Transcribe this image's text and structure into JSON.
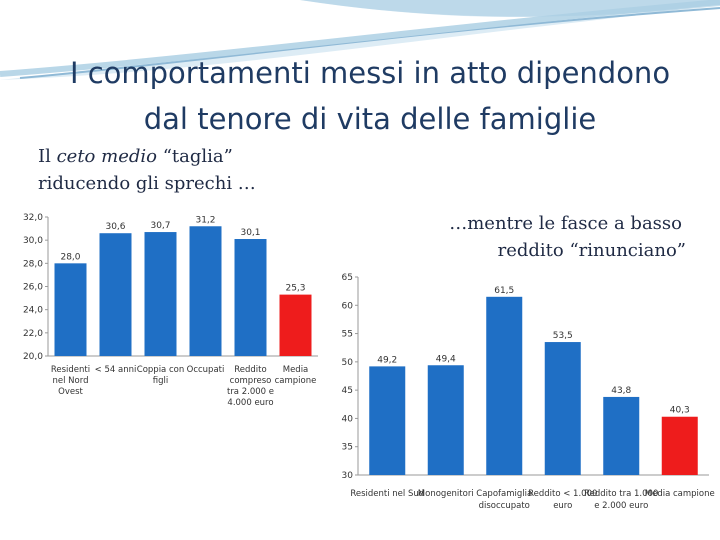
{
  "slide": {
    "title_line1": "I comportamenti messi in atto dipendono",
    "title_line2": "dal tenore di vita delle famiglie",
    "left_caption": {
      "line1_pre": "Il ",
      "line1_italic": "ceto medio",
      "line1_post": " “taglia”",
      "line2": "riducendo gli sprechi …"
    },
    "right_caption": {
      "line1": "…mentre le fasce a basso",
      "line2": "reddito “rinunciano”"
    }
  },
  "colors": {
    "bar_blue": "#1f6fc5",
    "bar_red": "#ee1c1c",
    "title": "#1f3b63",
    "banner": "#b9d7e8"
  },
  "chart_data": [
    {
      "type": "bar",
      "categories": [
        [
          "Residenti",
          "nel Nord",
          "Ovest"
        ],
        [
          "< 54 anni"
        ],
        [
          "Coppia con",
          "figli"
        ],
        [
          "Occupati"
        ],
        [
          "Reddito",
          "compreso",
          "tra 2.000 e",
          "4.000 euro"
        ],
        [
          "Media",
          "campione"
        ]
      ],
      "values": [
        28.0,
        30.6,
        30.7,
        31.2,
        30.1,
        25.3
      ],
      "value_labels": [
        "28,0",
        "30,6",
        "30,7",
        "31,2",
        "30,1",
        "25,3"
      ],
      "highlight_index": 5,
      "ylim": [
        20,
        32
      ],
      "yticks": [
        "20,0",
        "22,0",
        "24,0",
        "26,0",
        "28,0",
        "30,0",
        "32,0"
      ],
      "grid": false
    },
    {
      "type": "bar",
      "categories": [
        [
          "Residenti nel Sud"
        ],
        [
          "Monogenitori"
        ],
        [
          "Capofamiglia",
          "disoccupato"
        ],
        [
          "Reddito < 1.000",
          "euro"
        ],
        [
          "Reddito tra 1.000",
          "e 2.000 euro"
        ],
        [
          "Media campione"
        ]
      ],
      "values": [
        49.2,
        49.4,
        61.5,
        53.5,
        43.8,
        40.3
      ],
      "value_labels": [
        "49,2",
        "49,4",
        "61,5",
        "53,5",
        "43,8",
        "40,3"
      ],
      "highlight_index": 5,
      "ylim": [
        30,
        65
      ],
      "yticks": [
        "30",
        "35",
        "40",
        "45",
        "50",
        "55",
        "60",
        "65"
      ],
      "grid": false
    }
  ]
}
